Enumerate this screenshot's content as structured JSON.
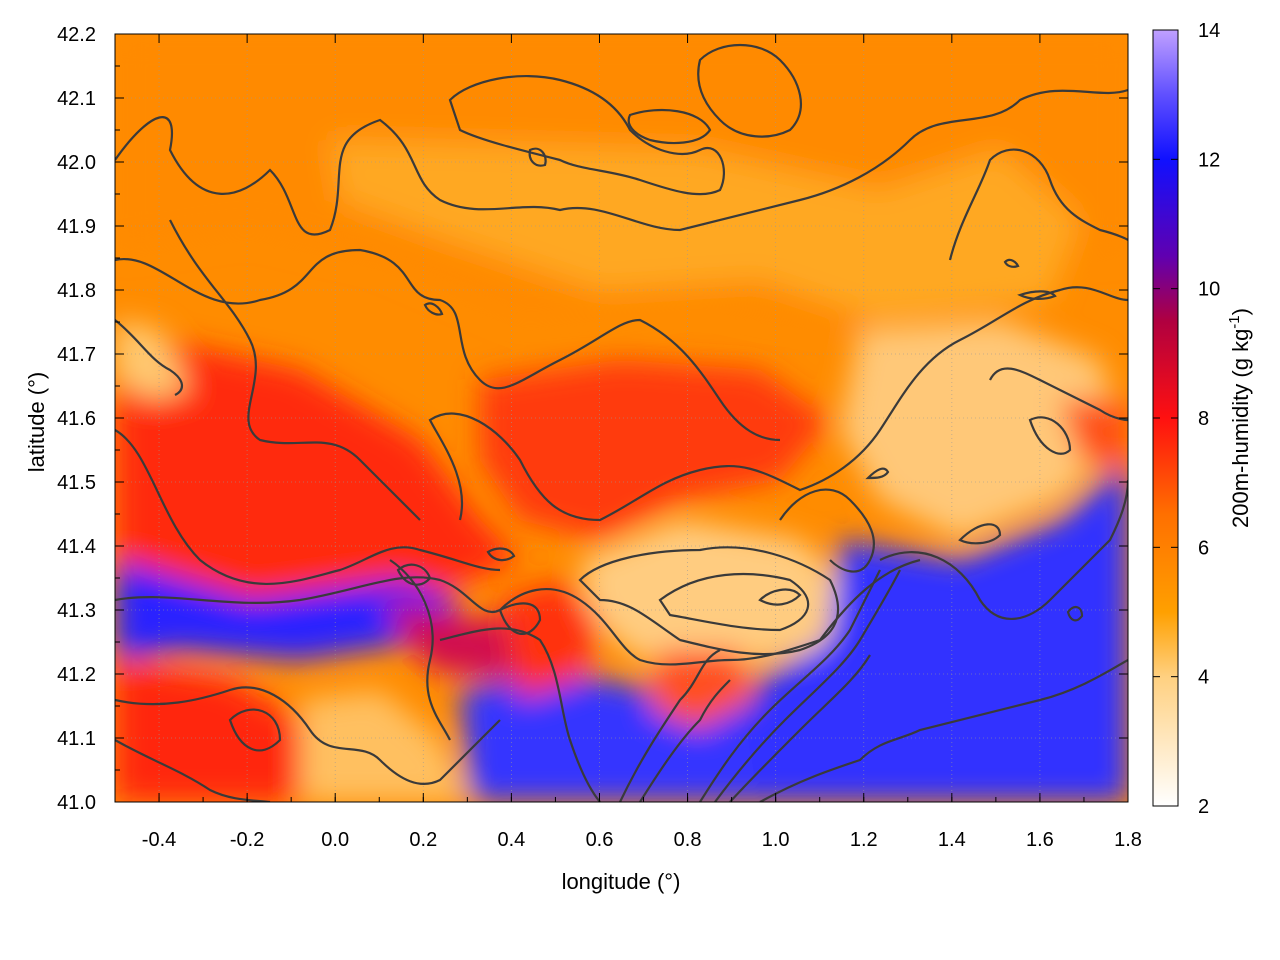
{
  "chart_data": {
    "type": "heatmap",
    "xlabel": "longitude (°)",
    "ylabel": "latitude (°)",
    "colorbar_label": "200m-humidity (g kg",
    "colorbar_unit_suffix": "-1",
    "colorbar_close": ")",
    "xlim": [
      -0.5,
      1.8
    ],
    "ylim": [
      41.0,
      42.2
    ],
    "clim": [
      2,
      14
    ],
    "x_ticks": [
      -0.4,
      -0.2,
      0.0,
      0.2,
      0.4,
      0.6,
      0.8,
      1.0,
      1.2,
      1.4,
      1.6,
      1.8
    ],
    "x_tick_labels": [
      "-0.4",
      "-0.2",
      "0.0",
      "0.2",
      "0.4",
      "0.6",
      "0.8",
      "1.0",
      "1.2",
      "1.4",
      "1.6",
      "1.8"
    ],
    "y_ticks": [
      41.0,
      41.1,
      41.2,
      41.3,
      41.4,
      41.5,
      41.6,
      41.7,
      41.8,
      41.9,
      42.0,
      42.1,
      42.2
    ],
    "y_tick_labels": [
      "41.0",
      "41.1",
      "41.2",
      "41.3",
      "41.4",
      "41.5",
      "41.6",
      "41.7",
      "41.8",
      "41.9",
      "42.0",
      "42.1",
      "42.2"
    ],
    "colorbar_ticks": [
      2,
      4,
      6,
      8,
      10,
      12,
      14
    ],
    "colorbar_tick_labels": [
      "2",
      "4",
      "6",
      "8",
      "10",
      "12",
      "14"
    ],
    "grid": true,
    "colormap": [
      {
        "value": 2,
        "color": "#ffffff"
      },
      {
        "value": 4,
        "color": "#ffd080"
      },
      {
        "value": 5,
        "color": "#ffa000"
      },
      {
        "value": 6.5,
        "color": "#ff7000"
      },
      {
        "value": 8,
        "color": "#ff1010"
      },
      {
        "value": 9.5,
        "color": "#b00040"
      },
      {
        "value": 10.5,
        "color": "#6000b0"
      },
      {
        "value": 12,
        "color": "#1010ff"
      },
      {
        "value": 13,
        "color": "#6050ff"
      },
      {
        "value": 14,
        "color": "#c0a0ff"
      }
    ],
    "contour_color": "#3a3a3a",
    "field_description_regions": [
      {
        "lon": [
          -0.5,
          1.8
        ],
        "lat": [
          41.75,
          42.2
        ],
        "humidity": 5.5
      },
      {
        "lon": [
          0.0,
          0.6
        ],
        "lat": [
          41.75,
          42.0
        ],
        "humidity": 4.8
      },
      {
        "lon": [
          -0.5,
          0.3
        ],
        "lat": [
          41.4,
          41.65
        ],
        "humidity": 7.8
      },
      {
        "lon": [
          -0.5,
          -0.4
        ],
        "lat": [
          41.65,
          41.75
        ],
        "humidity": 4.5
      },
      {
        "lon": [
          0.55,
          0.95
        ],
        "lat": [
          41.2,
          41.45
        ],
        "humidity": 4.2
      },
      {
        "lon": [
          1.2,
          1.7
        ],
        "lat": [
          41.45,
          41.75
        ],
        "humidity": 4.3
      },
      {
        "lon": [
          -0.5,
          0.2
        ],
        "lat": [
          41.25,
          41.35
        ],
        "humidity": 11.5
      },
      {
        "lon": [
          1.2,
          1.8
        ],
        "lat": [
          41.0,
          41.3
        ],
        "humidity": 12.5
      },
      {
        "lon": [
          0.4,
          0.8
        ],
        "lat": [
          41.0,
          41.15
        ],
        "humidity": 12.3
      },
      {
        "lon": [
          -0.5,
          0.0
        ],
        "lat": [
          41.0,
          41.2
        ],
        "humidity": 7.5
      },
      {
        "lon": [
          0.0,
          0.2
        ],
        "lat": [
          41.0,
          41.1
        ],
        "humidity": 4.0
      }
    ]
  }
}
